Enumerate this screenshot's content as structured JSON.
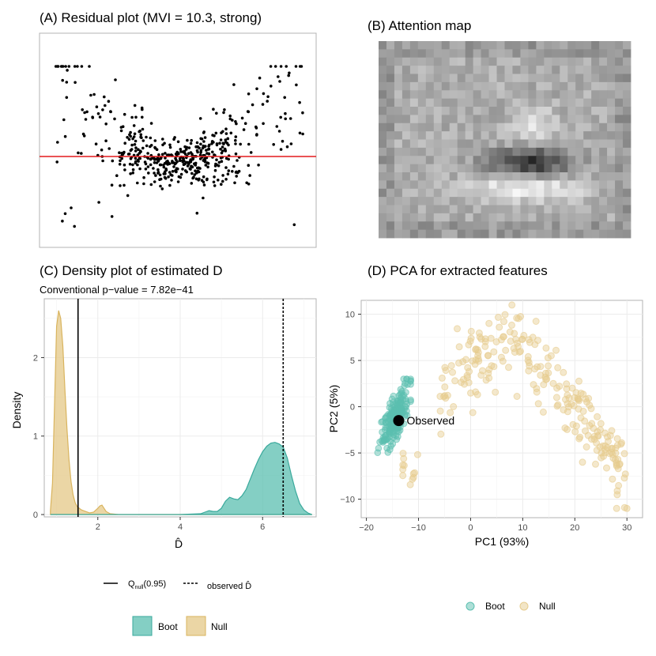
{
  "colors": {
    "boot": "#5bbfb0",
    "boot_line": "#3aa99c",
    "null": "#e6cc8e",
    "null_line": "#d9b45e",
    "residual_line": "#e41a1c",
    "grid": "#ebebeb",
    "panel_border": "#b3b3b3"
  },
  "panel_a": {
    "title": "(A) Residual plot (MVI = 10.3, strong)"
  },
  "panel_b": {
    "title": "(B) Attention map"
  },
  "panel_c": {
    "title": "(C) Density plot of estimated D",
    "subtitle": "Conventional p−value = 7.82e−41",
    "legend_lines": [
      {
        "label_main": "Q",
        "label_sub": "null",
        "label_rest": "(0.95)",
        "style": "solid"
      },
      {
        "label_main": "observed D̂",
        "style": "dashed"
      }
    ],
    "legend_fill": [
      {
        "label": "Boot",
        "color": "#5bbfb0"
      },
      {
        "label": "Null",
        "color": "#e6cc8e"
      }
    ]
  },
  "panel_d": {
    "title": "(D) PCA for extracted features",
    "observed_label": "Observed",
    "legend": [
      {
        "label": "Boot",
        "color": "#5bbfb0"
      },
      {
        "label": "Null",
        "color": "#e6cc8e"
      }
    ]
  },
  "chart_data": [
    {
      "type": "scatter",
      "panel": "A",
      "title": "(A) Residual plot (MVI = 10.3, strong)",
      "axes_visible": false,
      "reference_line": {
        "y": 0,
        "color": "#e41a1c"
      },
      "xlim": [
        0,
        1
      ],
      "ylim": [
        -1,
        1
      ],
      "point_color": "#000000",
      "n_points_approx": 500,
      "pattern": "residuals with U-shaped (quadratic) spread pattern"
    },
    {
      "type": "heatmap",
      "panel": "B",
      "title": "(B) Attention map",
      "colormap": "grayscale",
      "grid": [
        24,
        32
      ],
      "note": "darkest region near center-right, bright band below it"
    },
    {
      "type": "area",
      "panel": "C",
      "title": "(C) Density plot of estimated D",
      "subtitle": "Conventional p−value = 7.82e−41",
      "xlabel": "D̂",
      "ylabel": "Density",
      "xlim": [
        0.7,
        7.3
      ],
      "ylim": [
        -0.03,
        2.75
      ],
      "xticks": [
        2,
        4,
        6
      ],
      "yticks": [
        0,
        1,
        2
      ],
      "vlines": [
        {
          "name": "Q_null(0.95)",
          "x": 1.52,
          "style": "solid"
        },
        {
          "name": "observed D̂",
          "x": 6.5,
          "style": "dashed"
        }
      ],
      "series": [
        {
          "name": "Null",
          "color": "#e6cc8e",
          "x": [
            0.85,
            0.9,
            0.95,
            1.0,
            1.05,
            1.1,
            1.15,
            1.2,
            1.25,
            1.3,
            1.35,
            1.4,
            1.45,
            1.5,
            1.6,
            1.7,
            1.8,
            1.9,
            2.0,
            2.05,
            2.1,
            2.15,
            2.2,
            2.3,
            2.5,
            3.0,
            4.0,
            5.0,
            6.0,
            7.0,
            7.2
          ],
          "y": [
            0.05,
            0.4,
            1.4,
            2.4,
            2.6,
            2.5,
            2.15,
            1.6,
            1.1,
            0.7,
            0.42,
            0.25,
            0.15,
            0.1,
            0.06,
            0.04,
            0.02,
            0.03,
            0.08,
            0.11,
            0.12,
            0.08,
            0.04,
            0.01,
            0.0,
            0.0,
            0.0,
            0.0,
            0.0,
            0.0,
            0.0
          ]
        },
        {
          "name": "Boot",
          "color": "#5bbfb0",
          "x": [
            0.85,
            1.5,
            2.0,
            3.0,
            4.0,
            4.5,
            4.6,
            4.7,
            4.8,
            4.9,
            5.0,
            5.1,
            5.2,
            5.3,
            5.4,
            5.5,
            5.6,
            5.7,
            5.8,
            5.9,
            6.0,
            6.1,
            6.2,
            6.3,
            6.4,
            6.5,
            6.6,
            6.7,
            6.8,
            6.9,
            7.0,
            7.1,
            7.2
          ],
          "y": [
            0.0,
            0.0,
            0.0,
            0.0,
            0.0,
            0.01,
            0.03,
            0.05,
            0.04,
            0.04,
            0.08,
            0.17,
            0.22,
            0.2,
            0.19,
            0.24,
            0.32,
            0.45,
            0.58,
            0.7,
            0.8,
            0.87,
            0.91,
            0.92,
            0.9,
            0.86,
            0.72,
            0.5,
            0.3,
            0.14,
            0.06,
            0.02,
            0.0
          ]
        }
      ]
    },
    {
      "type": "scatter",
      "panel": "D",
      "title": "(D) PCA for extracted features",
      "xlabel": "PC1 (93%)",
      "ylabel": "PC2 (5%)",
      "xlim": [
        -21,
        33
      ],
      "ylim": [
        -12,
        11.5
      ],
      "xticks": [
        -20,
        -10,
        0,
        10,
        20,
        30
      ],
      "yticks": [
        -10,
        -5,
        0,
        5,
        10
      ],
      "observed": {
        "x": -13.8,
        "y": -1.5,
        "label": "Observed"
      },
      "series": [
        {
          "name": "Boot",
          "color": "#5bbfb0",
          "n_points_approx": 200,
          "shape": "dense elongated cluster",
          "x_range": [
            -19,
            -12
          ],
          "y_range": [
            -7.5,
            3
          ]
        },
        {
          "name": "Null",
          "color": "#e6cc8e",
          "n_points_approx": 250,
          "shape": "broad arc",
          "x_range": [
            -13,
            32
          ],
          "y_range": [
            -11,
            11
          ]
        }
      ]
    }
  ]
}
